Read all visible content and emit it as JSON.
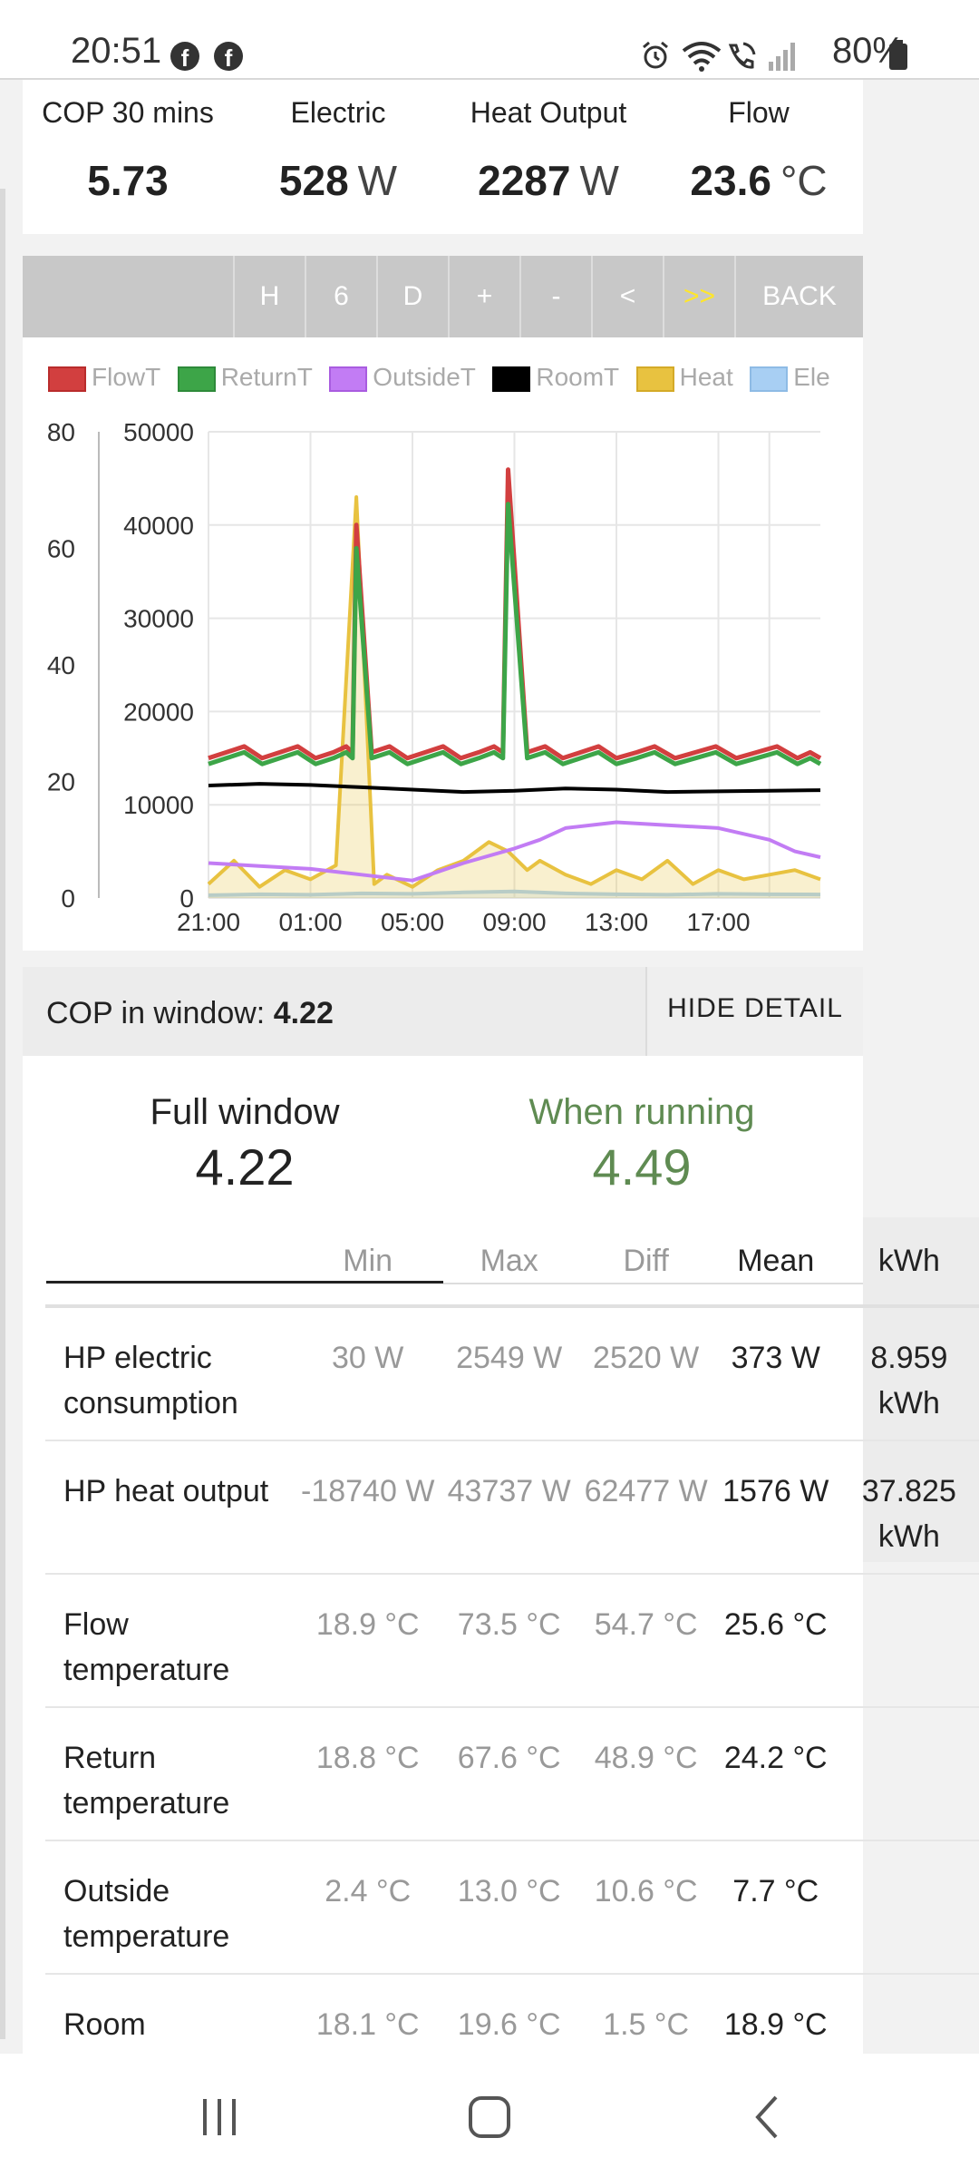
{
  "status": {
    "time": "20:51",
    "battery": "80%"
  },
  "stats": [
    {
      "label": "COP 30 mins",
      "value": "5.73",
      "unit": ""
    },
    {
      "label": "Electric",
      "value": "528",
      "unit": "W"
    },
    {
      "label": "Heat Output",
      "value": "2287",
      "unit": "W"
    },
    {
      "label": "Flow",
      "value": "23.6",
      "unit": "°C"
    }
  ],
  "toolbar": {
    "buttons": [
      "H",
      "6",
      "D",
      "+",
      "-",
      "<",
      ">>",
      "BACK"
    ],
    "active": ">>"
  },
  "colors": {
    "flow": "#d23f3f",
    "return": "#3da548",
    "outside": "#c27cf4",
    "room": "#000000",
    "heat": "#e8c240",
    "elec": "#a8cff3",
    "accent": "#ffe629",
    "running": "#5f8b52"
  },
  "chart_data": {
    "type": "line",
    "legend": [
      "FlowT",
      "ReturnT",
      "OutsideT",
      "RoomT",
      "Heat",
      "Ele"
    ],
    "x_ticks": [
      "21:00",
      "01:00",
      "05:00",
      "09:00",
      "13:00",
      "17:00"
    ],
    "y_left_ticks": [
      "80",
      "60",
      "40",
      "20",
      "0"
    ],
    "y_right_ticks": [
      "50000",
      "40000",
      "30000",
      "20000",
      "10000",
      "0"
    ],
    "y_left_range": [
      0,
      80
    ],
    "y_right_range": [
      0,
      50000
    ],
    "grid": true,
    "legend_placement": "top",
    "x_hours": [
      0,
      1,
      2,
      3,
      4,
      5,
      6,
      7,
      8,
      9,
      10,
      11,
      12,
      13,
      14,
      15,
      16,
      17,
      18,
      19,
      20,
      21,
      22,
      23,
      24
    ],
    "series": [
      {
        "name": "FlowT",
        "axis": "left",
        "x": [
          0,
          0.7,
          1.4,
          2.1,
          2.8,
          3.5,
          4.2,
          4.9,
          5.4,
          5.65,
          5.8,
          6.4,
          7.1,
          7.8,
          8.5,
          9.2,
          9.9,
          10.6,
          11.2,
          11.55,
          11.75,
          12.5,
          13.2,
          13.9,
          14.6,
          15.3,
          16,
          16.8,
          17.5,
          18.3,
          19.1,
          19.9,
          20.7,
          21.5,
          22.3,
          23.1,
          23.6,
          24
        ],
        "values": [
          24,
          25,
          26,
          24,
          25,
          26,
          24,
          25,
          26,
          25,
          64,
          25,
          26,
          24,
          25,
          26,
          24,
          25,
          26,
          25,
          73.5,
          25,
          26,
          24,
          25,
          26,
          24,
          25,
          26,
          24,
          25,
          26,
          24,
          25,
          26,
          24,
          25,
          24
        ]
      },
      {
        "name": "ReturnT",
        "axis": "left",
        "x": [
          0,
          0.7,
          1.4,
          2.1,
          2.8,
          3.5,
          4.2,
          4.9,
          5.4,
          5.65,
          5.8,
          6.4,
          7.1,
          7.8,
          8.5,
          9.2,
          9.9,
          10.6,
          11.2,
          11.55,
          11.75,
          12.5,
          13.2,
          13.9,
          14.6,
          15.3,
          16,
          16.8,
          17.5,
          18.3,
          19.1,
          19.9,
          20.7,
          21.5,
          22.3,
          23.1,
          23.6,
          24
        ],
        "values": [
          23,
          24,
          25,
          23,
          24,
          25,
          23,
          24,
          25,
          24,
          60,
          24,
          25,
          23,
          24,
          25,
          23,
          24,
          25,
          24,
          67.6,
          24,
          25,
          23,
          24,
          25,
          23,
          24,
          25,
          23,
          24,
          25,
          23,
          24,
          25,
          23,
          24,
          23
        ]
      },
      {
        "name": "OutsideT",
        "axis": "left",
        "x": [
          0,
          2,
          4,
          6,
          8,
          10,
          12,
          13,
          14,
          16,
          18,
          20,
          22,
          23,
          24
        ],
        "values": [
          6.0,
          5.5,
          5.0,
          4.0,
          3.0,
          6.0,
          8.5,
          10.0,
          12.0,
          13.0,
          12.5,
          12.0,
          10.0,
          8.0,
          7.0
        ]
      },
      {
        "name": "RoomT",
        "axis": "left",
        "x": [
          0,
          2,
          4,
          6,
          8,
          10,
          12,
          14,
          16,
          18,
          20,
          22,
          24
        ],
        "values": [
          19.3,
          19.6,
          19.4,
          19.0,
          18.6,
          18.2,
          18.4,
          18.8,
          18.6,
          18.2,
          18.3,
          18.4,
          18.5
        ]
      },
      {
        "name": "Heat",
        "axis": "right",
        "x": [
          0,
          1,
          2,
          3,
          4,
          5,
          5.8,
          6.5,
          7,
          8,
          9,
          10,
          11,
          11.75,
          12.5,
          13,
          14,
          15,
          16,
          17,
          18,
          19,
          20,
          21,
          22,
          23,
          24
        ],
        "values": [
          1500,
          4000,
          1200,
          3000,
          2000,
          3500,
          43000,
          1500,
          2500,
          1200,
          3000,
          4000,
          6000,
          5000,
          3000,
          4000,
          2500,
          1500,
          3000,
          2000,
          4000,
          1500,
          3000,
          2000,
          2500,
          3000,
          2000
        ]
      },
      {
        "name": "Ele",
        "axis": "right",
        "x": [
          0,
          2,
          4,
          6,
          8,
          10,
          12,
          14,
          16,
          18,
          20,
          22,
          24
        ],
        "values": [
          300,
          400,
          350,
          500,
          450,
          600,
          700,
          500,
          400,
          350,
          450,
          400,
          380
        ]
      }
    ]
  },
  "cop_window": {
    "label": "COP in window:",
    "value": "4.22",
    "hide_label": "HIDE DETAIL"
  },
  "tabs": [
    {
      "title": "Full window",
      "value": "4.22"
    },
    {
      "title": "When running",
      "value": "4.49"
    }
  ],
  "table": {
    "headers": [
      "",
      "Min",
      "Max",
      "Diff",
      "Mean",
      "kWh"
    ],
    "rows": [
      {
        "name": "HP electric consumption",
        "min": "30 W",
        "max": "2549 W",
        "diff": "2520 W",
        "mean": "373 W",
        "kwh": "8.959 kWh"
      },
      {
        "name": "HP heat output",
        "min": "-18740 W",
        "max": "43737 W",
        "diff": "62477 W",
        "mean": "1576 W",
        "kwh": "37.825 kWh"
      },
      {
        "name": "Flow temperature",
        "min": "18.9 °C",
        "max": "73.5 °C",
        "diff": "54.7 °C",
        "mean": "25.6 °C",
        "kwh": ""
      },
      {
        "name": "Return temperature",
        "min": "18.8 °C",
        "max": "67.6 °C",
        "diff": "48.9 °C",
        "mean": "24.2 °C",
        "kwh": ""
      },
      {
        "name": "Outside temperature",
        "min": "2.4 °C",
        "max": "13.0 °C",
        "diff": "10.6 °C",
        "mean": "7.7 °C",
        "kwh": ""
      },
      {
        "name": "Room temperature",
        "min": "18.1 °C",
        "max": "19.6 °C",
        "diff": "1.5 °C",
        "mean": "18.9 °C",
        "kwh": ""
      }
    ]
  }
}
